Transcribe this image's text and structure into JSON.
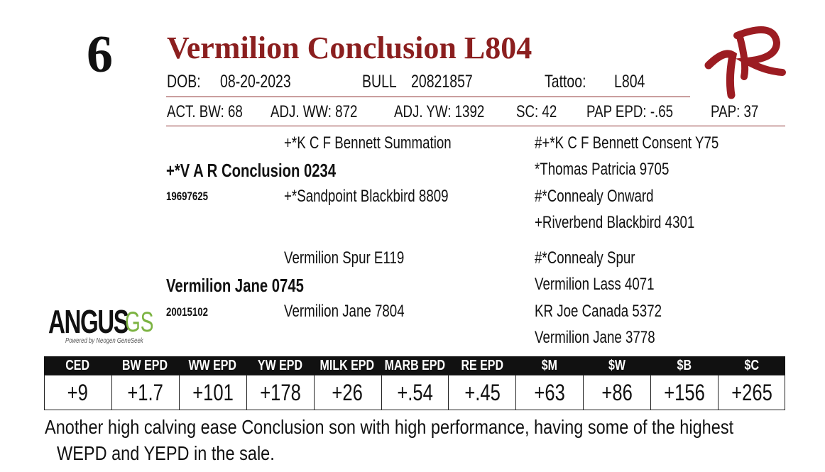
{
  "lot": "6",
  "name": "Vermilion Conclusion L804",
  "info": {
    "dob_label": "DOB:",
    "dob": "08-20-2023",
    "sex": "BULL",
    "reg": "20821857",
    "tattoo_label": "Tattoo:",
    "tattoo": "L804"
  },
  "stats": [
    "ACT. BW: 68",
    "ADJ. WW: 872",
    "ADJ. YW: 1392",
    "SC: 42",
    "PAP EPD: -.65",
    "PAP: 37"
  ],
  "pedigree": {
    "sire": "+*V A R Conclusion 0234",
    "sire_reg": "19697625",
    "sire_sire": "+*K C F Bennett Summation",
    "sire_dam": "+*Sandpoint Blackbird 8809",
    "sire_grand": [
      "#+*K C F Bennett Consent Y75",
      "*Thomas Patricia 9705",
      "#*Connealy Onward",
      "+Riverbend Blackbird 4301"
    ],
    "dam": "Vermilion Jane 0745",
    "dam_reg": "20015102",
    "dam_sire": "Vermilion Spur E119",
    "dam_dam": "Vermilion Jane 7804",
    "dam_grand": [
      "#*Connealy Spur",
      "Vermilion Lass 4071",
      "KR Joe Canada 5372",
      "Vermilion Jane 3778"
    ]
  },
  "logo": {
    "main": "ANGUS",
    "suffix": "GS",
    "tagline": "Powered by Neogen GeneSeek"
  },
  "epd": {
    "headers": [
      "CED",
      "BW EPD",
      "WW EPD",
      "YW EPD",
      "MILK EPD",
      "MARB EPD",
      "RE EPD",
      "$M",
      "$W",
      "$B",
      "$C"
    ],
    "values": [
      "+9",
      "+1.7",
      "+101",
      "+178",
      "+26",
      "+.54",
      "+.45",
      "+63",
      "+86",
      "+156",
      "+265"
    ]
  },
  "note": [
    "Another high calving ease Conclusion son with high performance, having some of the highest",
    "WEPD and YEPD in the sale."
  ]
}
